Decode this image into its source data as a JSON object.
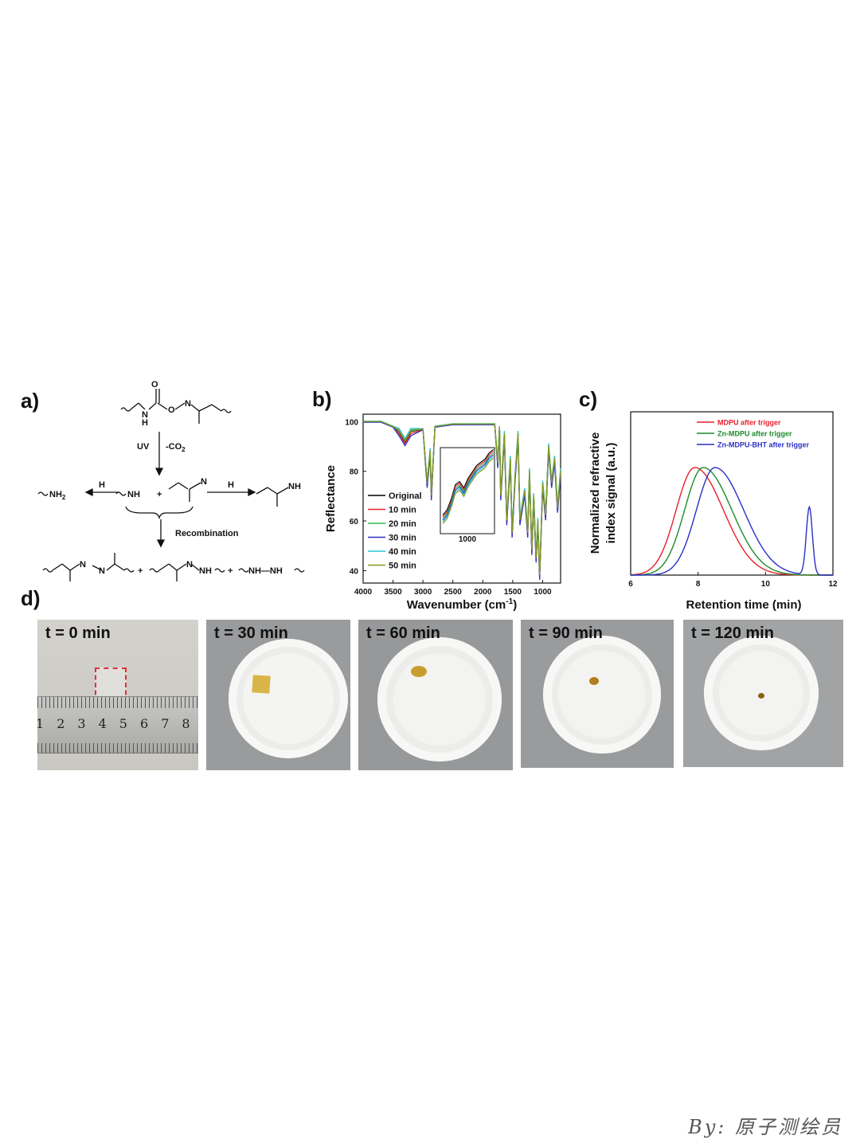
{
  "panels": {
    "a": "a)",
    "b": "b)",
    "c": "c)",
    "d": "d)"
  },
  "scheme": {
    "uv": "UV",
    "co2": "-CO",
    "co2_sub": "2",
    "h1": "H",
    "h2": "H",
    "nh2": "NH",
    "nh2_sub": "2",
    "nh_radical": "NH",
    "n_radical": "N",
    "nh_product": "NH",
    "plus": "+",
    "recombination": "Recombination",
    "n_label": "N",
    "o_label": "O",
    "h_label": "H",
    "azine_n": "N",
    "hydrazone_nh": "NH",
    "hydrazine": "NH—NH"
  },
  "chart_data": [
    {
      "type": "line",
      "panel": "b",
      "xlabel": "Wavenumber (cm",
      "xlabel_sup": "-1",
      "xlabel_end": ")",
      "ylabel": "Reflectance",
      "xlim": [
        4000,
        700
      ],
      "ylim": [
        35,
        103
      ],
      "x_ticks": [
        "4000",
        "3500",
        "3000",
        "2500",
        "2000",
        "1500",
        "1000"
      ],
      "y_ticks": [
        "40",
        "60",
        "80",
        "100"
      ],
      "inset_tick": "1000",
      "legend_placement": "bottom-left",
      "series": [
        {
          "name": "Original",
          "color": "#000000"
        },
        {
          "name": "10 min",
          "color": "#e8202a"
        },
        {
          "name": "20 min",
          "color": "#2fb84a"
        },
        {
          "name": "30 min",
          "color": "#2b2fc4"
        },
        {
          "name": "40 min",
          "color": "#27c5d9"
        },
        {
          "name": "50 min",
          "color": "#8a9a1a"
        }
      ],
      "x": [
        4000,
        3700,
        3500,
        3400,
        3300,
        3200,
        3000,
        2930,
        2880,
        2860,
        2800,
        2500,
        2000,
        1800,
        1750,
        1720,
        1700,
        1640,
        1600,
        1540,
        1510,
        1460,
        1410,
        1380,
        1300,
        1250,
        1220,
        1180,
        1150,
        1110,
        1080,
        1050,
        1000,
        950,
        900,
        850,
        800,
        750,
        700
      ],
      "y": [
        100,
        100,
        98,
        96,
        92,
        96,
        97,
        75,
        88,
        70,
        98,
        99,
        99,
        99,
        83,
        98,
        70,
        95,
        60,
        85,
        55,
        78,
        95,
        60,
        72,
        55,
        80,
        48,
        70,
        45,
        60,
        38,
        75,
        62,
        90,
        75,
        85,
        65,
        80
      ]
    },
    {
      "type": "line",
      "panel": "c",
      "xlabel": "Retention time (min)",
      "ylabel_line1": "Normalized refractive",
      "ylabel_line2": "index signal (a.u.)",
      "xlim": [
        6,
        12
      ],
      "x_ticks": [
        "6",
        "8",
        "10",
        "12"
      ],
      "legend_placement": "top-right",
      "series": [
        {
          "name": "MDPU after trigger",
          "color": "#e8202a",
          "peak_x": 7.9,
          "peak_y": 1.0
        },
        {
          "name": "Zn-MDPU after trigger",
          "color": "#1e8a2a",
          "peak_x": 8.15,
          "peak_y": 1.0
        },
        {
          "name": "Zn-MDPU-BHT after trigger",
          "color": "#2b2fc4",
          "peak_x": 8.5,
          "peak_y": 1.0,
          "secondary_peak_x": 11.3,
          "secondary_peak_y": 0.63
        }
      ]
    }
  ],
  "photos": [
    {
      "label": "t = 0 min"
    },
    {
      "label": "t = 30 min"
    },
    {
      "label": "t = 60 min"
    },
    {
      "label": "t = 90 min"
    },
    {
      "label": "t = 120 min"
    }
  ],
  "ruler_numbers": [
    "1",
    "2",
    "3",
    "4",
    "5",
    "6",
    "7",
    "8"
  ],
  "watermark": "By: 原子测绘员"
}
